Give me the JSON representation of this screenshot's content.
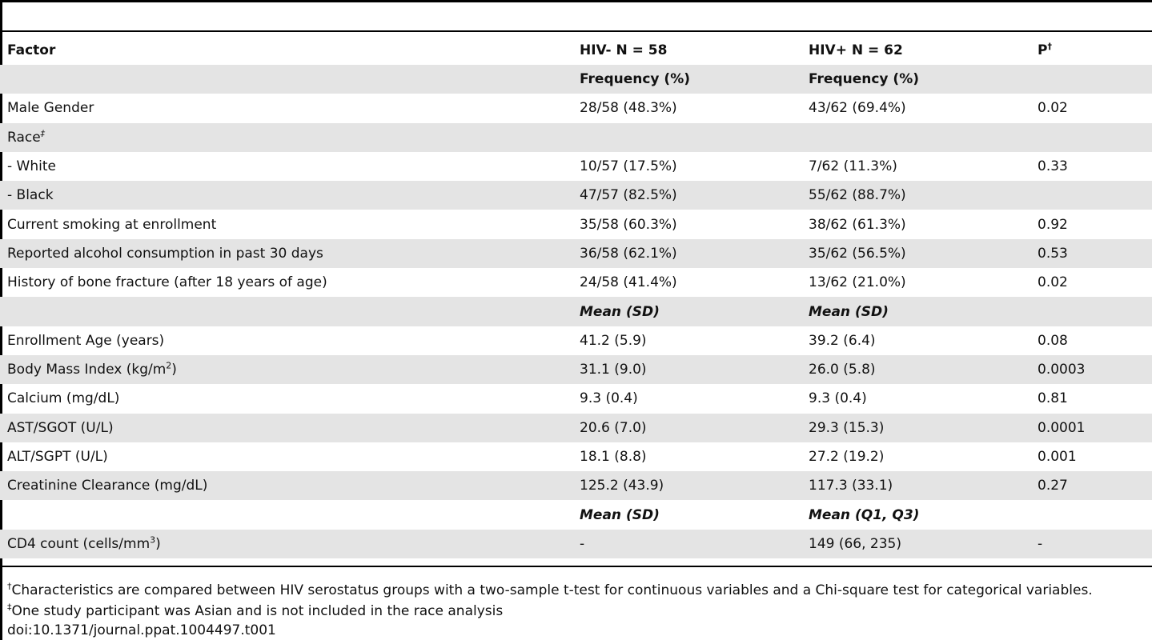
{
  "columns": [
    "Factor",
    "HIV- N = 58",
    "HIV+ N = 62",
    "P"
  ],
  "p_marker": "†",
  "subheaders": {
    "frequency": "Frequency (%)",
    "mean_sd": "Mean (SD)",
    "mean_q": "Mean (Q1, Q3)"
  },
  "rows": {
    "male_gender": [
      "Male Gender",
      "28/58 (48.3%)",
      "43/62 (69.4%)",
      "0.02"
    ],
    "race": [
      "Race",
      "‡"
    ],
    "white": [
      "- White",
      "10/57 (17.5%)",
      "7/62 (11.3%)",
      "0.33"
    ],
    "black": [
      "- Black",
      "47/57 (82.5%)",
      "55/62 (88.7%)",
      ""
    ],
    "smoking": [
      "Current smoking at enrollment",
      "35/58 (60.3%)",
      "38/62 (61.3%)",
      "0.92"
    ],
    "alcohol": [
      "Reported alcohol consumption in past 30 days",
      "36/58 (62.1%)",
      "35/62 (56.5%)",
      "0.53"
    ],
    "fracture": [
      "History of bone fracture (after 18 years of age)",
      "24/58 (41.4%)",
      "13/62 (21.0%)",
      "0.02"
    ],
    "age": [
      "Enrollment Age (years)",
      "41.2 (5.9)",
      "39.2 (6.4)",
      "0.08"
    ],
    "bmi": [
      "Body Mass Index (kg/m",
      "2",
      ")",
      "31.1 (9.0)",
      "26.0 (5.8)",
      "0.0003"
    ],
    "calcium": [
      "Calcium (mg/dL)",
      "9.3 (0.4)",
      "9.3 (0.4)",
      "0.81"
    ],
    "ast": [
      "AST/SGOT (U/L)",
      "20.6 (7.0)",
      "29.3 (15.3)",
      "0.0001"
    ],
    "alt": [
      "ALT/SGPT (U/L)",
      "18.1 (8.8)",
      "27.2 (19.2)",
      "0.001"
    ],
    "creat": [
      "Creatinine Clearance (mg/dL)",
      "125.2 (43.9)",
      "117.3 (33.1)",
      "0.27"
    ],
    "cd4": [
      "CD4 count (cells/mm",
      "3",
      ")",
      "-",
      "149 (66, 235)",
      "-"
    ]
  },
  "footnotes": {
    "dagger_mark": "†",
    "dagger_text": "Characteristics are compared between HIV serostatus groups with a two-sample t-test for continuous variables and a Chi-square test for categorical variables.",
    "ddagger_mark": "‡",
    "ddagger_text": "One study participant was Asian and is not included in the race analysis",
    "doi": "doi:10.1371/journal.ppat.1004497.t001"
  }
}
